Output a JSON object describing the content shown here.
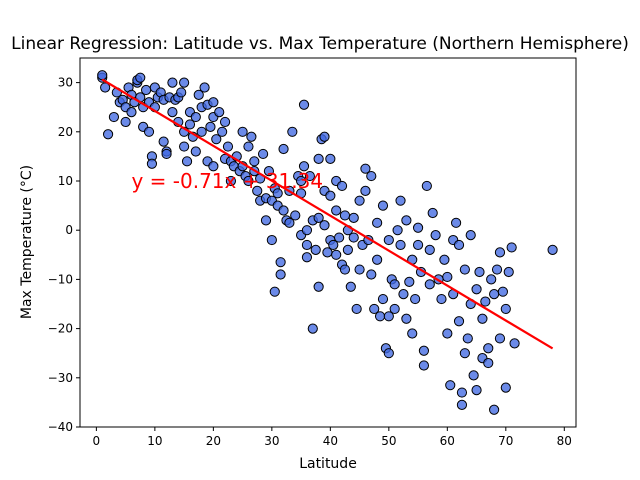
{
  "chart_data": {
    "type": "scatter",
    "title": "Linear Regression: Latitude vs. Max Temperature (Northern Hemisphere)",
    "xlabel": "Latitude",
    "ylabel": "Max Temperature (°C)",
    "xlim": [
      -2.8,
      82
    ],
    "ylim": [
      -40,
      35
    ],
    "xticks": [
      0,
      10,
      20,
      30,
      40,
      50,
      60,
      70,
      80
    ],
    "yticks": [
      -40,
      -30,
      -20,
      -10,
      0,
      10,
      20,
      30
    ],
    "grid": false,
    "regression": {
      "slope": -0.71,
      "intercept": 31.34,
      "x_range": [
        1,
        78
      ]
    },
    "annotation": {
      "text": "y = -0.71x + 31.34",
      "x": 6,
      "y": 10
    },
    "colors": {
      "points": "#4169e1",
      "point_edge": "#000000",
      "line": "#ff0000",
      "annotation": "#ff0000"
    },
    "points": [
      [
        1,
        31
      ],
      [
        1,
        31.5
      ],
      [
        1.5,
        29
      ],
      [
        2,
        19.5
      ],
      [
        3,
        23
      ],
      [
        3.5,
        28
      ],
      [
        4,
        26
      ],
      [
        4.5,
        26.5
      ],
      [
        5,
        22
      ],
      [
        5,
        25
      ],
      [
        5.5,
        29
      ],
      [
        6,
        27.5
      ],
      [
        6,
        24
      ],
      [
        6.5,
        26
      ],
      [
        7,
        30
      ],
      [
        7,
        30.5
      ],
      [
        7.5,
        31
      ],
      [
        7.5,
        27
      ],
      [
        8,
        25
      ],
      [
        8,
        21
      ],
      [
        8.5,
        28.5
      ],
      [
        9,
        26
      ],
      [
        9,
        20
      ],
      [
        9.5,
        15
      ],
      [
        9.5,
        13.5
      ],
      [
        10,
        29
      ],
      [
        10,
        25
      ],
      [
        10.5,
        27
      ],
      [
        11,
        28
      ],
      [
        11.5,
        26.5
      ],
      [
        11.5,
        18
      ],
      [
        12,
        16
      ],
      [
        12,
        15.5
      ],
      [
        12.5,
        27
      ],
      [
        13,
        30
      ],
      [
        13,
        24
      ],
      [
        13.5,
        26.5
      ],
      [
        14,
        27
      ],
      [
        14,
        22
      ],
      [
        14.5,
        28
      ],
      [
        15,
        30
      ],
      [
        15,
        20
      ],
      [
        15,
        17
      ],
      [
        15.5,
        14
      ],
      [
        16,
        24
      ],
      [
        16,
        21.5
      ],
      [
        16.5,
        19
      ],
      [
        17,
        23
      ],
      [
        17,
        16
      ],
      [
        17.5,
        27.5
      ],
      [
        18,
        25
      ],
      [
        18,
        20
      ],
      [
        18.5,
        29
      ],
      [
        19,
        25.5
      ],
      [
        19,
        14
      ],
      [
        19.5,
        21
      ],
      [
        20,
        26
      ],
      [
        20,
        23
      ],
      [
        20,
        13
      ],
      [
        20.5,
        18.5
      ],
      [
        21,
        24
      ],
      [
        21.5,
        20
      ],
      [
        22,
        22
      ],
      [
        22,
        14.5
      ],
      [
        22.5,
        17
      ],
      [
        23,
        14
      ],
      [
        23,
        10
      ],
      [
        23.5,
        13
      ],
      [
        24,
        15
      ],
      [
        24.5,
        12
      ],
      [
        25,
        20
      ],
      [
        25,
        13
      ],
      [
        25.5,
        11
      ],
      [
        26,
        17
      ],
      [
        26,
        10
      ],
      [
        26.5,
        19
      ],
      [
        27,
        14
      ],
      [
        27,
        12
      ],
      [
        27.5,
        8
      ],
      [
        28,
        10.5
      ],
      [
        28,
        6
      ],
      [
        28.5,
        15.5
      ],
      [
        29,
        6.5
      ],
      [
        29,
        2
      ],
      [
        29.5,
        12
      ],
      [
        30,
        6
      ],
      [
        30,
        -2
      ],
      [
        30.5,
        8.5
      ],
      [
        30.5,
        -12.5
      ],
      [
        31,
        7.5
      ],
      [
        31,
        5
      ],
      [
        31.5,
        -6.5
      ],
      [
        31.5,
        -9
      ],
      [
        32,
        4
      ],
      [
        32,
        16.5
      ],
      [
        32.5,
        2
      ],
      [
        33,
        8
      ],
      [
        33,
        1.5
      ],
      [
        33.5,
        20
      ],
      [
        34,
        3
      ],
      [
        34.5,
        11
      ],
      [
        35,
        10
      ],
      [
        35,
        7.5
      ],
      [
        35,
        -1
      ],
      [
        35.5,
        13
      ],
      [
        35.5,
        25.5
      ],
      [
        36,
        0
      ],
      [
        36,
        -3
      ],
      [
        36,
        -5.5
      ],
      [
        36.5,
        11
      ],
      [
        37,
        2
      ],
      [
        37,
        -20
      ],
      [
        37.5,
        -4
      ],
      [
        38,
        14.5
      ],
      [
        38,
        2.5
      ],
      [
        38,
        -11.5
      ],
      [
        38.5,
        18.5
      ],
      [
        39,
        19
      ],
      [
        39,
        8
      ],
      [
        39,
        1
      ],
      [
        39.5,
        -4.5
      ],
      [
        40,
        -2
      ],
      [
        40,
        7
      ],
      [
        40,
        14.5
      ],
      [
        40.5,
        -3
      ],
      [
        41,
        4
      ],
      [
        41,
        10
      ],
      [
        41,
        -5
      ],
      [
        41.5,
        -1.5
      ],
      [
        42,
        -7
      ],
      [
        42,
        9
      ],
      [
        42.5,
        -8
      ],
      [
        42.5,
        3
      ],
      [
        43,
        0
      ],
      [
        43,
        -4
      ],
      [
        43.5,
        -11.5
      ],
      [
        44,
        2.5
      ],
      [
        44,
        -1.5
      ],
      [
        44.5,
        -16
      ],
      [
        45,
        -8
      ],
      [
        45,
        6
      ],
      [
        45.5,
        -3
      ],
      [
        46,
        12.5
      ],
      [
        46,
        8
      ],
      [
        46.5,
        -2
      ],
      [
        47,
        11
      ],
      [
        47,
        -9
      ],
      [
        47.5,
        -16
      ],
      [
        48,
        1.5
      ],
      [
        48,
        -6
      ],
      [
        48.5,
        -17.5
      ],
      [
        49,
        5
      ],
      [
        49,
        -14
      ],
      [
        49.5,
        -24
      ],
      [
        50,
        -2
      ],
      [
        50,
        -17.5
      ],
      [
        50,
        -25
      ],
      [
        50.5,
        -10
      ],
      [
        51,
        -11
      ],
      [
        51,
        -16
      ],
      [
        51.5,
        0
      ],
      [
        52,
        6
      ],
      [
        52,
        -3
      ],
      [
        52.5,
        -13
      ],
      [
        53,
        -18
      ],
      [
        53,
        2
      ],
      [
        53.5,
        -10.5
      ],
      [
        54,
        -21
      ],
      [
        54,
        -6
      ],
      [
        54.5,
        -14
      ],
      [
        55,
        -3
      ],
      [
        55,
        0.5
      ],
      [
        55.5,
        -8.5
      ],
      [
        56,
        -27.5
      ],
      [
        56,
        -24.5
      ],
      [
        56.5,
        9
      ],
      [
        57,
        -4
      ],
      [
        57,
        -11
      ],
      [
        57.5,
        3.5
      ],
      [
        58,
        -1
      ],
      [
        58.5,
        -10
      ],
      [
        59,
        -14
      ],
      [
        59.5,
        -6
      ],
      [
        60,
        -9.5
      ],
      [
        60,
        -21
      ],
      [
        60.5,
        -31.5
      ],
      [
        61,
        -2
      ],
      [
        61,
        -13
      ],
      [
        61.5,
        1.5
      ],
      [
        62,
        -3
      ],
      [
        62,
        -18.5
      ],
      [
        62.5,
        -33
      ],
      [
        62.5,
        -35.5
      ],
      [
        63,
        -25
      ],
      [
        63,
        -8
      ],
      [
        63.5,
        -22
      ],
      [
        64,
        -1
      ],
      [
        64,
        -15
      ],
      [
        64.5,
        -29.5
      ],
      [
        65,
        -32.5
      ],
      [
        65,
        -12
      ],
      [
        65.5,
        -8.5
      ],
      [
        66,
        -26
      ],
      [
        66,
        -18
      ],
      [
        66.5,
        -14.5
      ],
      [
        67,
        -27
      ],
      [
        67,
        -24
      ],
      [
        67.5,
        -10
      ],
      [
        68,
        -36.5
      ],
      [
        68,
        -13
      ],
      [
        68.5,
        -8
      ],
      [
        69,
        -4.5
      ],
      [
        69,
        -22
      ],
      [
        69.5,
        -12.5
      ],
      [
        70,
        -32
      ],
      [
        70,
        -16
      ],
      [
        70.5,
        -8.5
      ],
      [
        71,
        -3.5
      ],
      [
        71.5,
        -23
      ],
      [
        78,
        -4
      ]
    ]
  }
}
